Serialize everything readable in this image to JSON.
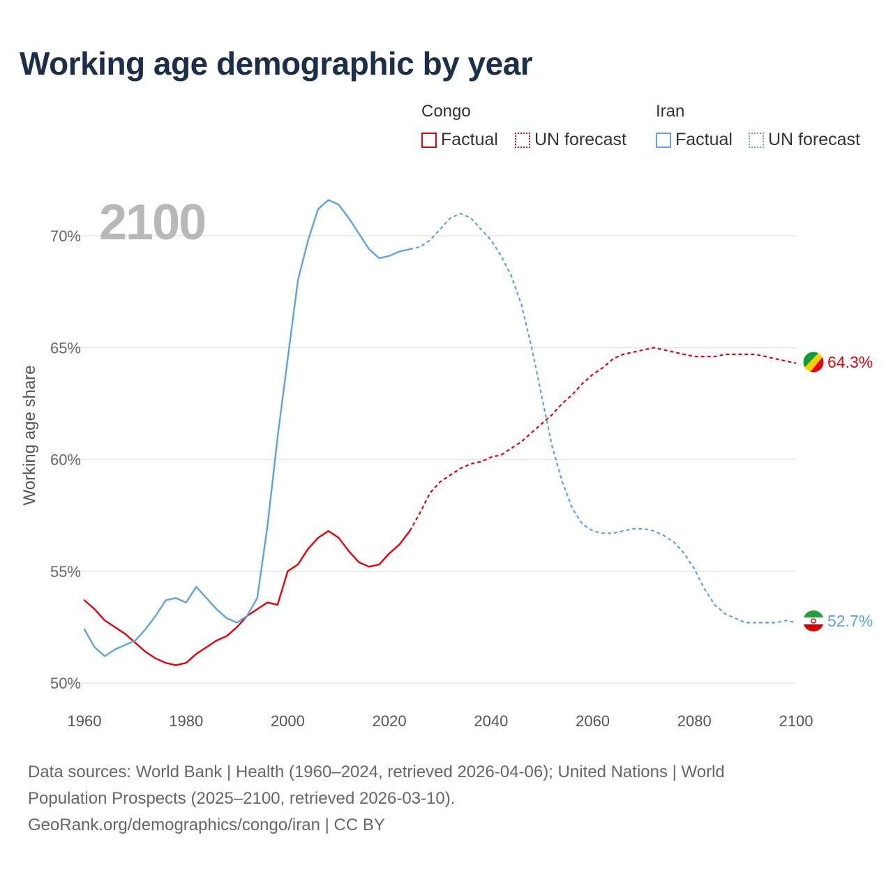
{
  "title": "Working age demographic by year",
  "legend": {
    "groups": [
      {
        "name": "Congo",
        "color": "#e8000b",
        "factual_label": "Factual",
        "forecast_label": "UN forecast"
      },
      {
        "name": "Iran",
        "color": "#5fa2e0",
        "factual_label": "Factual",
        "forecast_label": "UN forecast"
      }
    ]
  },
  "footer": {
    "line1": "Data sources: World Bank | Health (1960–2024, retrieved 2026-04-06); United Nations | World",
    "line2": "Population Prospects (2025–2100, retrieved 2026-03-10).",
    "line3": "GeoRank.org/demographics/congo/iran | CC BY"
  },
  "chart_data": {
    "type": "line",
    "year_label": "2100",
    "ylabel": "Working age share",
    "xlim": [
      1960,
      2100
    ],
    "ylim": [
      49.5,
      72
    ],
    "xticks": [
      1960,
      1980,
      2000,
      2020,
      2040,
      2060,
      2080,
      2100
    ],
    "yticks": [
      {
        "value": 50,
        "label": "50%"
      },
      {
        "value": 55,
        "label": "55%"
      },
      {
        "value": 60,
        "label": "60%"
      },
      {
        "value": 65,
        "label": "65%"
      },
      {
        "value": 70,
        "label": "70%"
      }
    ],
    "grid": true,
    "series": [
      {
        "name": "Congo",
        "color": "#e8000b",
        "end_label": "64.3%",
        "factual_years": [
          1960,
          1962,
          1964,
          1966,
          1968,
          1970,
          1972,
          1974,
          1976,
          1978,
          1980,
          1982,
          1984,
          1986,
          1988,
          1990,
          1992,
          1994,
          1996,
          1998,
          2000,
          2002,
          2004,
          2006,
          2008,
          2010,
          2012,
          2014,
          2016,
          2018,
          2020,
          2022,
          2024
        ],
        "factual_values": [
          53.7,
          53.3,
          52.8,
          52.5,
          52.2,
          51.8,
          51.4,
          51.1,
          50.9,
          50.8,
          50.9,
          51.3,
          51.6,
          51.9,
          52.1,
          52.5,
          53.0,
          53.3,
          53.6,
          53.5,
          55.0,
          55.3,
          56.0,
          56.5,
          56.8,
          56.5,
          55.9,
          55.4,
          55.2,
          55.3,
          55.8,
          56.2,
          56.8
        ],
        "forecast_years": [
          2024,
          2026,
          2028,
          2030,
          2032,
          2034,
          2036,
          2038,
          2040,
          2042,
          2044,
          2046,
          2048,
          2050,
          2052,
          2054,
          2056,
          2058,
          2060,
          2062,
          2064,
          2066,
          2068,
          2070,
          2072,
          2074,
          2076,
          2078,
          2080,
          2082,
          2084,
          2086,
          2088,
          2090,
          2092,
          2094,
          2096,
          2098,
          2100
        ],
        "forecast_values": [
          56.8,
          57.6,
          58.5,
          59.0,
          59.3,
          59.6,
          59.8,
          59.9,
          60.1,
          60.2,
          60.5,
          60.8,
          61.2,
          61.6,
          62.0,
          62.5,
          62.9,
          63.4,
          63.8,
          64.1,
          64.5,
          64.7,
          64.8,
          64.9,
          65.0,
          64.9,
          64.8,
          64.7,
          64.6,
          64.6,
          64.6,
          64.7,
          64.7,
          64.7,
          64.7,
          64.6,
          64.5,
          64.4,
          64.3
        ]
      },
      {
        "name": "Iran",
        "color": "#5fa2e0",
        "end_label": "52.7%",
        "factual_years": [
          1960,
          1962,
          1964,
          1966,
          1968,
          1970,
          1972,
          1974,
          1976,
          1978,
          1980,
          1982,
          1984,
          1986,
          1988,
          1990,
          1992,
          1994,
          1996,
          1998,
          2000,
          2002,
          2004,
          2006,
          2008,
          2010,
          2012,
          2014,
          2016,
          2018,
          2020,
          2022,
          2024
        ],
        "factual_values": [
          52.4,
          51.6,
          51.2,
          51.5,
          51.7,
          51.9,
          52.4,
          53.0,
          53.7,
          53.8,
          53.6,
          54.3,
          53.8,
          53.3,
          52.9,
          52.7,
          53.0,
          53.8,
          57.0,
          61.0,
          64.5,
          68.0,
          69.8,
          71.2,
          71.6,
          71.4,
          70.8,
          70.1,
          69.4,
          69.0,
          69.1,
          69.3,
          69.4
        ],
        "forecast_years": [
          2024,
          2026,
          2028,
          2030,
          2032,
          2034,
          2036,
          2038,
          2040,
          2042,
          2044,
          2046,
          2048,
          2050,
          2052,
          2054,
          2056,
          2058,
          2060,
          2062,
          2064,
          2066,
          2068,
          2070,
          2072,
          2074,
          2076,
          2078,
          2080,
          2082,
          2084,
          2086,
          2088,
          2090,
          2092,
          2094,
          2096,
          2098,
          2100
        ],
        "forecast_values": [
          69.4,
          69.5,
          69.8,
          70.3,
          70.8,
          71.0,
          70.8,
          70.3,
          69.8,
          69.1,
          68.2,
          66.9,
          65.0,
          62.8,
          60.6,
          59.0,
          57.8,
          57.1,
          56.8,
          56.7,
          56.7,
          56.8,
          56.9,
          56.9,
          56.8,
          56.6,
          56.3,
          55.8,
          55.1,
          54.2,
          53.5,
          53.1,
          52.9,
          52.7,
          52.7,
          52.7,
          52.7,
          52.8,
          52.7
        ]
      }
    ]
  }
}
